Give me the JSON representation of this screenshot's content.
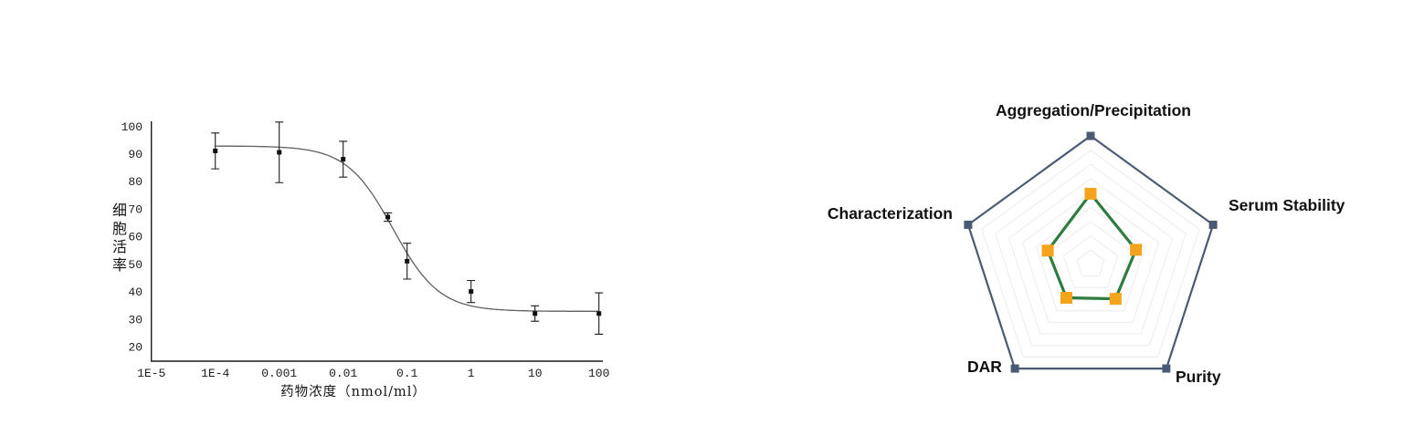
{
  "page": {
    "background": "#ffffff"
  },
  "chart_data": [
    {
      "type": "line",
      "subtype": "dose-response-scatter-with-fit",
      "title": "",
      "xlabel": "药物浓度（nmol/ml）",
      "ylabel": "细胞活率",
      "x_scale": "log",
      "x_ticks": [
        "1E-5",
        "1E-4",
        "0.001",
        "0.01",
        "0.1",
        "1",
        "10",
        "100"
      ],
      "y_ticks": [
        100,
        90,
        80,
        70,
        60,
        50,
        40,
        30,
        20
      ],
      "ylim": [
        15,
        101
      ],
      "xlim_log": [
        -5,
        2
      ],
      "grid": false,
      "legend": "none",
      "points": [
        {
          "x": 0.0001,
          "y": 91,
          "err": 6.5
        },
        {
          "x": 0.001,
          "y": 90.5,
          "err": 11
        },
        {
          "x": 0.01,
          "y": 88,
          "err": 6.5
        },
        {
          "x": 0.05,
          "y": 67,
          "err": 1.5
        },
        {
          "x": 0.1,
          "y": 51,
          "err": 6.5
        },
        {
          "x": 1,
          "y": 40,
          "err": 4
        },
        {
          "x": 10,
          "y": 32,
          "err": 2.8
        },
        {
          "x": 100,
          "y": 32,
          "err": 7.5
        }
      ],
      "fit_curve": {
        "model": "4PL",
        "top": 92.8,
        "bottom": 32.8,
        "ic50": 0.06,
        "hill": 1.2
      },
      "colors": {
        "ink": "#1c1c1c",
        "curve": "#5f5f5f",
        "marker": "#111111"
      }
    },
    {
      "type": "radar",
      "indicators": [
        "Aggregation/Precipitation",
        "Serum Stability",
        "Purity",
        "DAR",
        "Characterization"
      ],
      "values": [
        0.55,
        0.37,
        0.33,
        0.32,
        0.35
      ],
      "max": 1,
      "grid_rings": 8,
      "legend": "none",
      "colors": {
        "outer": "#4b5a74",
        "grid": "#ececec",
        "series_line": "#2e7d3f",
        "series_marker": "#f5a31b"
      }
    }
  ]
}
